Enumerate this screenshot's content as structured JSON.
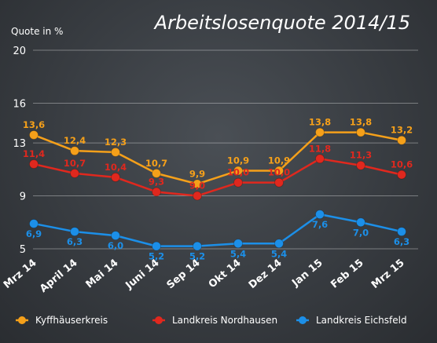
{
  "chart_data": {
    "type": "line",
    "title": "Arbeitslosenquote 2014/15",
    "ylabel": "Quote in %",
    "categories": [
      "Mrz 14",
      "April 14",
      "Mai 14",
      "Juni 14",
      "Sep 14",
      "Okt 14",
      "Dez 14",
      "Jan 15",
      "Feb 15",
      "Mrz 15"
    ],
    "yticks": [
      5,
      9,
      13,
      16,
      20
    ],
    "ylim": [
      5,
      20
    ],
    "grid": true,
    "legend_position": "bottom",
    "series": [
      {
        "name": "Kyffhäuserkreis",
        "color": "#f5a01a",
        "values": [
          13.6,
          12.4,
          12.3,
          10.7,
          9.9,
          10.9,
          10.9,
          13.8,
          13.8,
          13.2
        ],
        "labels": [
          "13,6",
          "12,4",
          "12,3",
          "10,7",
          "9,9",
          "10,9",
          "10,9",
          "13,8",
          "13,8",
          "13,2"
        ]
      },
      {
        "name": "Landkreis Nordhausen",
        "color": "#e0281e",
        "values": [
          11.4,
          10.7,
          10.4,
          9.3,
          9.0,
          10.0,
          10.0,
          11.8,
          11.3,
          10.6
        ],
        "labels": [
          "11,4",
          "10,7",
          "10,4",
          "9,3",
          "9,0",
          "10,0",
          "10,0",
          "11,8",
          "11,3",
          "10,6"
        ]
      },
      {
        "name": "Landkreis Eichsfeld",
        "color": "#1c8fe8",
        "values": [
          6.9,
          6.3,
          6.0,
          5.2,
          5.2,
          5.4,
          5.4,
          7.6,
          7.0,
          6.3
        ],
        "labels": [
          "6,9",
          "6,3",
          "6,0",
          "5,2",
          "5,2",
          "5,4",
          "5,4",
          "7,6",
          "7,0",
          "6,3"
        ]
      }
    ]
  }
}
